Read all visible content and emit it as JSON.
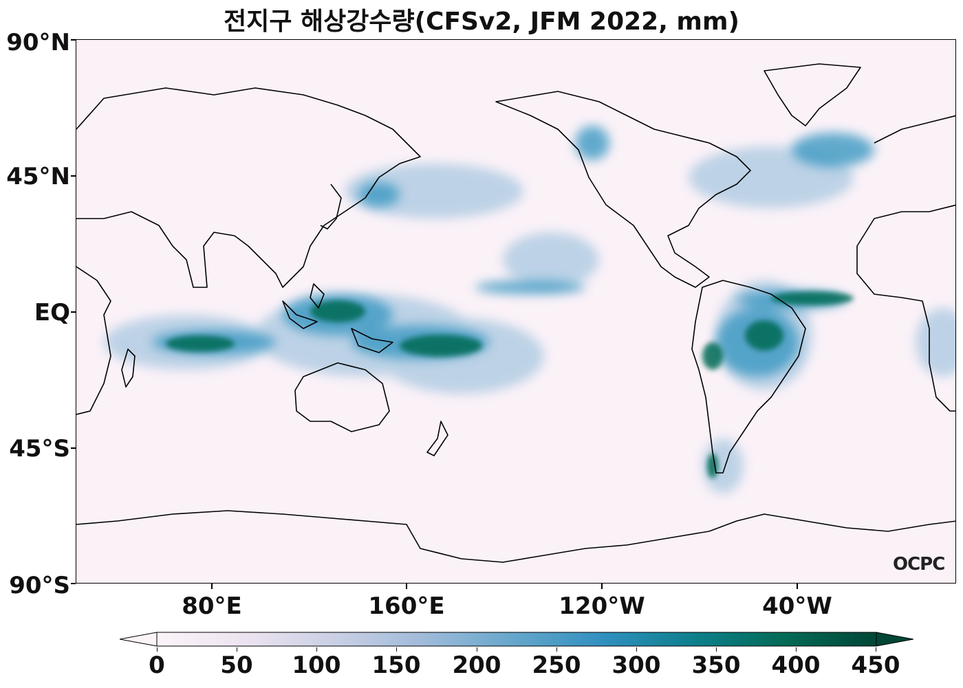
{
  "title": "전지구 해상강수량(CFSv2, JFM 2022, mm)",
  "axes": {
    "lat_ticks": [
      "90°N",
      "45°N",
      "EQ",
      "45°S",
      "90°S"
    ],
    "lon_ticks": [
      "80°E",
      "160°E",
      "120°W",
      "40°W"
    ]
  },
  "colorbar": {
    "ticks": [
      "0",
      "50",
      "100",
      "150",
      "200",
      "250",
      "300",
      "350",
      "400",
      "450"
    ],
    "range": [
      0,
      450
    ],
    "extend": "both",
    "colors": [
      "#fcf4f9",
      "#ece3f0",
      "#c9cfe4",
      "#9ebad9",
      "#64a6cb",
      "#2f8fbe",
      "#0d7f8a",
      "#036a55",
      "#014636"
    ]
  },
  "watermark": "OCPC",
  "map": {
    "projection": "equirectangular",
    "central_longitude": "180",
    "coastline_color": "#000000",
    "field": "precipitation"
  }
}
